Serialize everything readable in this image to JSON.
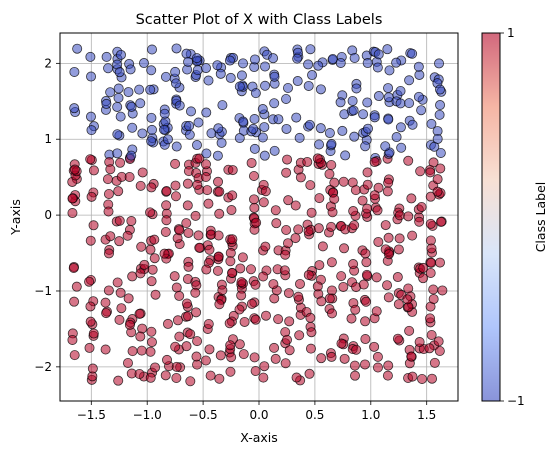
{
  "chart_data": {
    "type": "scatter",
    "title": "Scatter Plot of X with Class Labels",
    "xlabel": "X-axis",
    "ylabel": "Y-axis",
    "xlim": [
      -1.78,
      1.78
    ],
    "ylim": [
      -2.45,
      2.4
    ],
    "xticks": [
      -1.5,
      -1.0,
      -0.5,
      0.0,
      0.5,
      1.0,
      1.5
    ],
    "xtick_labels": [
      "−1.5",
      "−1.0",
      "−0.5",
      "0.0",
      "0.5",
      "1.0",
      "1.5"
    ],
    "yticks": [
      -2,
      -1,
      0,
      1,
      2
    ],
    "ytick_labels": [
      "−2",
      "−1",
      "0",
      "1",
      "2"
    ],
    "grid": true,
    "colormap": "coolwarm",
    "point_alpha": 0.55,
    "edge_color": "#000000",
    "class_rule": "points with y above about 0.75 are class -1 (blue); all others class 1 (red)",
    "x_columns": [
      -1.65,
      -1.5,
      -1.35,
      -1.25,
      -1.15,
      -1.05,
      -0.95,
      -0.83,
      -0.73,
      -0.63,
      -0.55,
      -0.45,
      -0.35,
      -0.25,
      -0.15,
      -0.05,
      0.05,
      0.15,
      0.25,
      0.35,
      0.45,
      0.55,
      0.65,
      0.75,
      0.85,
      0.95,
      1.05,
      1.15,
      1.25,
      1.35,
      1.45,
      1.55,
      1.62
    ],
    "y_range": [
      -2.2,
      2.2
    ],
    "classes": [
      {
        "label": -1,
        "color": "#3b4cc0",
        "y_min": 0.75
      },
      {
        "label": 1,
        "color": "#b40426",
        "y_max": 0.75
      }
    ],
    "colorbar": {
      "label": "Class Label",
      "min": -1,
      "max": 1,
      "ticks": [
        "−1",
        "1"
      ],
      "stops": [
        "#3b4cc0",
        "#7b9ff9",
        "#c0d4f5",
        "#f2cbb7",
        "#ee8468",
        "#b40426"
      ]
    }
  }
}
